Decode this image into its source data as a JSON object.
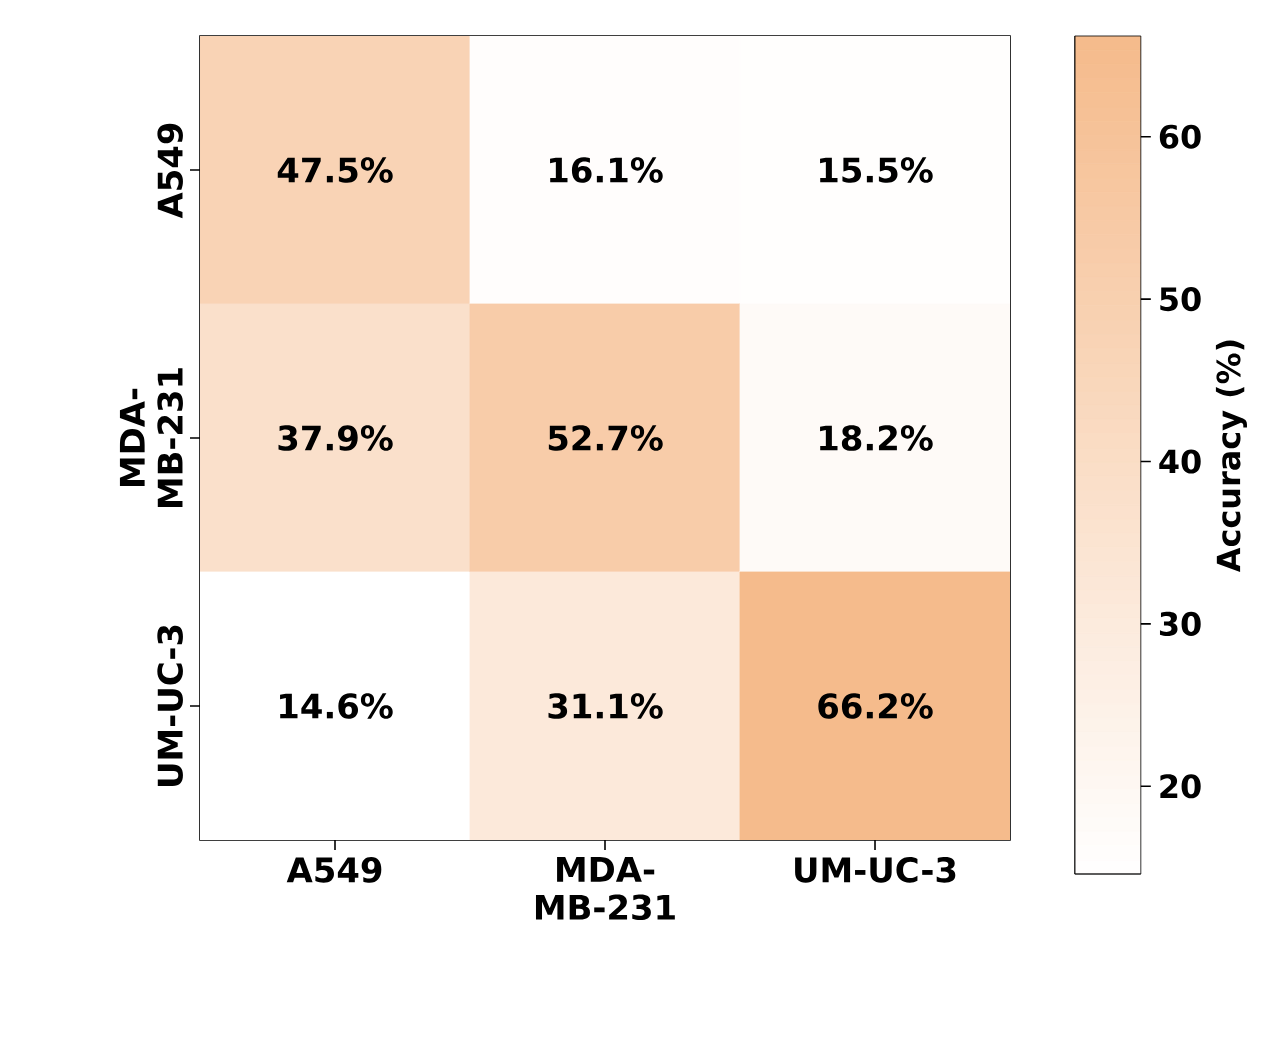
{
  "chart_data": {
    "type": "heatmap",
    "clabel": "Accuracy (%)",
    "categories": [
      "A549",
      "MDA-MB-231",
      "UM-UC-3"
    ],
    "y_categories": [
      "A549",
      "MDA-MB-231",
      "UM-UC-3"
    ],
    "cells": [
      [
        47.5,
        16.1,
        15.5
      ],
      [
        37.9,
        52.7,
        18.2
      ],
      [
        14.6,
        31.1,
        66.2
      ]
    ],
    "cell_labels": [
      [
        "47.5%",
        "16.1%",
        "15.5%"
      ],
      [
        "37.9%",
        "52.7%",
        "18.2%"
      ],
      [
        "14.6%",
        "31.1%",
        "66.2%"
      ]
    ],
    "clim": [
      14.6,
      66.2
    ],
    "cticks": [
      20,
      30,
      40,
      50,
      60
    ]
  }
}
